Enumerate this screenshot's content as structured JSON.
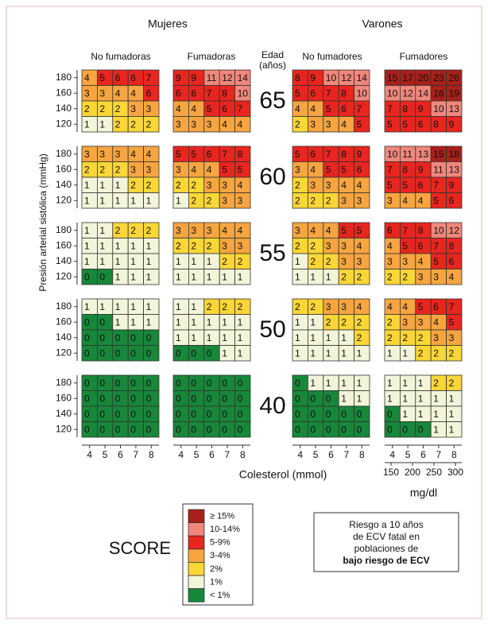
{
  "headers": {
    "women": "Mujeres",
    "men": "Varones",
    "age": "Edad",
    "age_unit": "(años)"
  },
  "groups": [
    {
      "label": "No fumadoras"
    },
    {
      "label": "Fumadoras"
    },
    {
      "label": "No fumadores"
    },
    {
      "label": "Fumadores"
    }
  ],
  "ages": [
    {
      "age": 65,
      "grids": [
        [
          [
            4,
            5,
            6,
            6,
            7
          ],
          [
            3,
            3,
            4,
            4,
            6
          ],
          [
            2,
            2,
            2,
            3,
            3
          ],
          [
            1,
            1,
            2,
            2,
            2
          ]
        ],
        [
          [
            9,
            9,
            11,
            12,
            14
          ],
          [
            6,
            6,
            7,
            8,
            10
          ],
          [
            4,
            4,
            5,
            6,
            7
          ],
          [
            3,
            3,
            3,
            4,
            4
          ]
        ],
        [
          [
            8,
            9,
            10,
            12,
            14
          ],
          [
            5,
            6,
            7,
            8,
            10
          ],
          [
            4,
            4,
            5,
            6,
            7
          ],
          [
            2,
            3,
            3,
            4,
            5
          ]
        ],
        [
          [
            15,
            17,
            20,
            23,
            26
          ],
          [
            10,
            12,
            14,
            16,
            19
          ],
          [
            7,
            8,
            9,
            10,
            13
          ],
          [
            5,
            5,
            6,
            8,
            9
          ]
        ]
      ]
    },
    {
      "age": 60,
      "grids": [
        [
          [
            3,
            3,
            3,
            4,
            4
          ],
          [
            2,
            2,
            2,
            3,
            3
          ],
          [
            1,
            1,
            1,
            2,
            2
          ],
          [
            1,
            1,
            1,
            1,
            1
          ]
        ],
        [
          [
            5,
            5,
            6,
            7,
            8
          ],
          [
            3,
            4,
            4,
            5,
            5
          ],
          [
            2,
            2,
            3,
            3,
            4
          ],
          [
            1,
            2,
            2,
            3,
            3
          ]
        ],
        [
          [
            5,
            6,
            7,
            8,
            9
          ],
          [
            3,
            4,
            5,
            5,
            6
          ],
          [
            2,
            3,
            3,
            4,
            4
          ],
          [
            2,
            2,
            2,
            3,
            3
          ]
        ],
        [
          [
            10,
            11,
            13,
            15,
            18
          ],
          [
            7,
            8,
            9,
            11,
            13
          ],
          [
            5,
            5,
            6,
            7,
            9
          ],
          [
            3,
            4,
            4,
            5,
            6
          ]
        ]
      ]
    },
    {
      "age": 55,
      "grids": [
        [
          [
            1,
            1,
            2,
            2,
            2
          ],
          [
            1,
            1,
            1,
            1,
            1
          ],
          [
            1,
            1,
            1,
            1,
            1
          ],
          [
            0,
            0,
            1,
            1,
            1
          ]
        ],
        [
          [
            3,
            3,
            3,
            4,
            4
          ],
          [
            2,
            2,
            2,
            3,
            3
          ],
          [
            1,
            1,
            1,
            2,
            2
          ],
          [
            1,
            1,
            1,
            1,
            1
          ]
        ],
        [
          [
            3,
            4,
            4,
            5,
            5
          ],
          [
            2,
            2,
            3,
            3,
            4
          ],
          [
            1,
            2,
            2,
            3,
            3
          ],
          [
            1,
            1,
            1,
            2,
            2
          ]
        ],
        [
          [
            6,
            7,
            8,
            10,
            12
          ],
          [
            4,
            5,
            6,
            7,
            8
          ],
          [
            3,
            3,
            4,
            5,
            6
          ],
          [
            2,
            2,
            3,
            3,
            4
          ]
        ]
      ]
    },
    {
      "age": 50,
      "grids": [
        [
          [
            1,
            1,
            1,
            1,
            1
          ],
          [
            0,
            0,
            1,
            1,
            1
          ],
          [
            0,
            0,
            0,
            0,
            0
          ],
          [
            0,
            0,
            0,
            0,
            0
          ]
        ],
        [
          [
            1,
            1,
            2,
            2,
            2
          ],
          [
            1,
            1,
            1,
            1,
            1
          ],
          [
            1,
            1,
            1,
            1,
            1
          ],
          [
            0,
            0,
            0,
            1,
            1
          ]
        ],
        [
          [
            2,
            2,
            3,
            3,
            4
          ],
          [
            1,
            1,
            2,
            2,
            2
          ],
          [
            1,
            1,
            1,
            1,
            2
          ],
          [
            1,
            1,
            1,
            1,
            1
          ]
        ],
        [
          [
            4,
            4,
            5,
            6,
            7
          ],
          [
            2,
            3,
            3,
            4,
            5
          ],
          [
            2,
            2,
            2,
            3,
            3
          ],
          [
            1,
            1,
            2,
            2,
            2
          ]
        ]
      ]
    },
    {
      "age": 40,
      "grids": [
        [
          [
            0,
            0,
            0,
            0,
            0
          ],
          [
            0,
            0,
            0,
            0,
            0
          ],
          [
            0,
            0,
            0,
            0,
            0
          ],
          [
            0,
            0,
            0,
            0,
            0
          ]
        ],
        [
          [
            0,
            0,
            0,
            0,
            0
          ],
          [
            0,
            0,
            0,
            0,
            0
          ],
          [
            0,
            0,
            0,
            0,
            0
          ],
          [
            0,
            0,
            0,
            0,
            0
          ]
        ],
        [
          [
            0,
            1,
            1,
            1,
            1
          ],
          [
            0,
            0,
            0,
            1,
            1
          ],
          [
            0,
            0,
            0,
            0,
            0
          ],
          [
            0,
            0,
            0,
            0,
            0
          ]
        ],
        [
          [
            1,
            1,
            1,
            2,
            2
          ],
          [
            1,
            1,
            1,
            1,
            1
          ],
          [
            0,
            1,
            1,
            1,
            1
          ],
          [
            0,
            0,
            0,
            1,
            1
          ]
        ]
      ]
    }
  ],
  "bp_ticks": [
    180,
    160,
    140,
    120
  ],
  "chol_ticks": [
    4,
    5,
    6,
    7,
    8
  ],
  "mgdl_ticks": [
    150,
    200,
    250,
    300
  ],
  "mgdl_label": "mg/dl",
  "y_label": "Presión arterial sistólica (mmHg)",
  "x_label": "Colesterol (mmol)",
  "score": "SCORE",
  "legend": [
    {
      "label": "≥ 15%",
      "color": "#a8201a"
    },
    {
      "label": "10-14%",
      "color": "#f0877c"
    },
    {
      "label": "5-9%",
      "color": "#e8251f"
    },
    {
      "label": "3-4%",
      "color": "#f7a540"
    },
    {
      "label": "2%",
      "color": "#fbd637"
    },
    {
      "label": "1%",
      "color": "#f3f5da"
    },
    {
      "label": "< 1%",
      "color": "#17873a"
    }
  ],
  "note": [
    "Riesgo a 10 años",
    "de ECV fatal en",
    "poblaciones de",
    "bajo riesgo de ECV"
  ]
}
